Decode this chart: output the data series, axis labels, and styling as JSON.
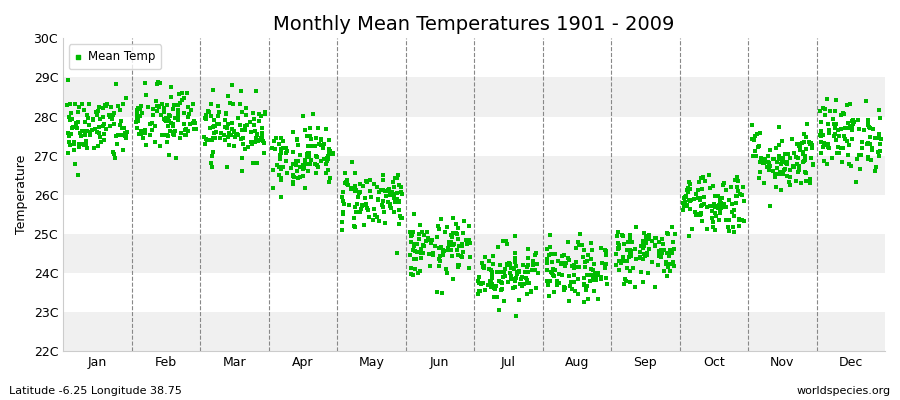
{
  "title": "Monthly Mean Temperatures 1901 - 2009",
  "ylabel": "Temperature",
  "bottom_left": "Latitude -6.25 Longitude 38.75",
  "bottom_right": "worldspecies.org",
  "legend_label": "Mean Temp",
  "ylim": [
    22,
    30
  ],
  "ytick_labels": [
    "22C",
    "23C",
    "24C",
    "25C",
    "26C",
    "27C",
    "28C",
    "29C",
    "30C"
  ],
  "months": [
    "Jan",
    "Feb",
    "Mar",
    "Apr",
    "May",
    "Jun",
    "Jul",
    "Aug",
    "Sep",
    "Oct",
    "Nov",
    "Dec"
  ],
  "mean_temps": [
    27.7,
    27.9,
    27.7,
    27.0,
    25.9,
    24.6,
    24.0,
    24.0,
    24.5,
    25.8,
    26.9,
    27.5
  ],
  "std_temps": [
    0.45,
    0.45,
    0.4,
    0.4,
    0.4,
    0.38,
    0.38,
    0.38,
    0.38,
    0.4,
    0.42,
    0.45
  ],
  "n_years": 109,
  "dot_color": "#00bb00",
  "background_color": "#ffffff",
  "band_color_odd": "#f0f0f0",
  "band_color_even": "#ffffff",
  "marker": "s",
  "marker_size": 3.5,
  "title_fontsize": 14,
  "label_fontsize": 9,
  "tick_fontsize": 9
}
